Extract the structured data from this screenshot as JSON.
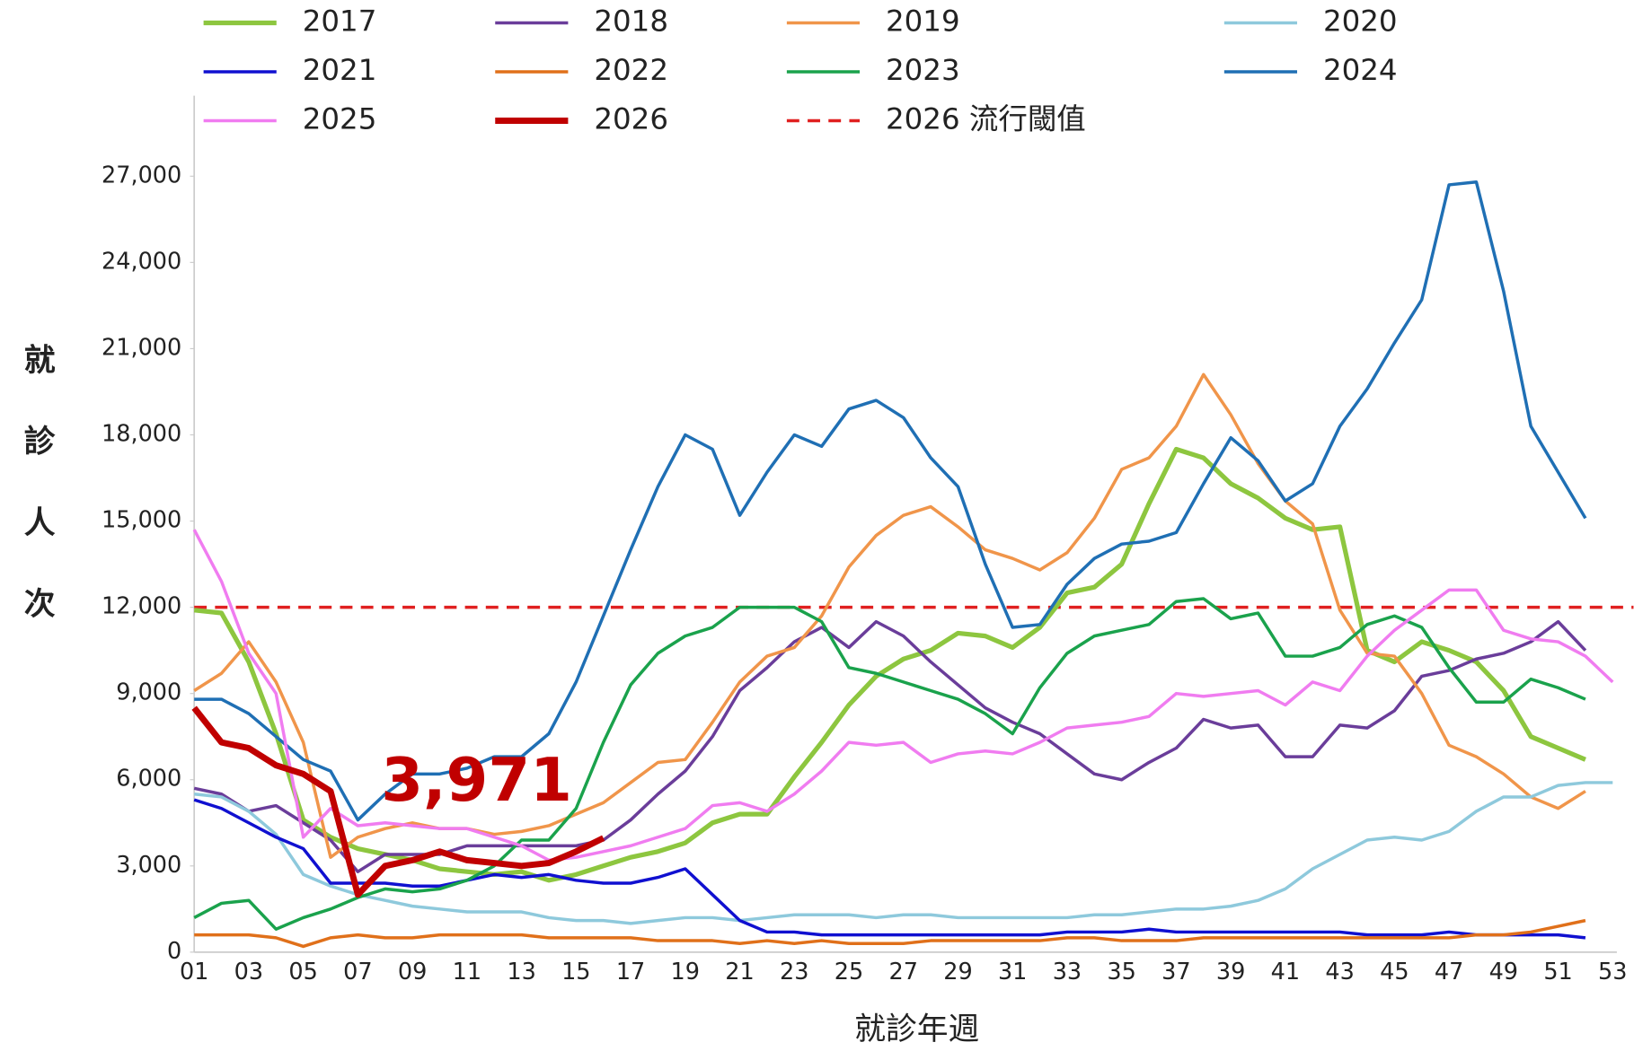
{
  "chart_data": {
    "type": "line",
    "xlabel": "就診年週",
    "ylabel": "就診人次",
    "categories": [
      "01",
      null,
      "03",
      null,
      "05",
      null,
      "07",
      null,
      "09",
      null,
      "11",
      null,
      "13",
      null,
      "15",
      null,
      "17",
      null,
      "19",
      null,
      "21",
      null,
      "23",
      null,
      "25",
      null,
      "27",
      null,
      "29",
      null,
      "31",
      null,
      "33",
      null,
      "35",
      null,
      "37",
      null,
      "39",
      null,
      "41",
      null,
      "43",
      null,
      "45",
      null,
      "47",
      null,
      "49",
      null,
      "51",
      null,
      "53"
    ],
    "ylim": [
      0,
      29800
    ],
    "yticks": [
      0,
      {
        "value": 3000,
        "label": "3,000"
      },
      {
        "value": 6000,
        "label": "6,000"
      },
      {
        "value": 9000,
        "label": "9,000"
      },
      {
        "value": 12000,
        "label": "12,000"
      },
      {
        "value": 15000,
        "label": "15,000"
      },
      {
        "value": 18000,
        "label": "18,000"
      },
      {
        "value": 21000,
        "label": "21,000"
      },
      {
        "value": 24000,
        "label": "24,000"
      },
      {
        "value": 27000,
        "label": "27,000"
      }
    ],
    "grid": false,
    "series": [
      {
        "name": "2017",
        "color": "#8dc63f",
        "values": [
          11900,
          11800,
          10100,
          7600,
          4600,
          4000,
          3600,
          3400,
          3200,
          2900,
          2800,
          2700,
          2800,
          2500,
          2700,
          3000,
          3300,
          3500,
          3800,
          4500,
          4800,
          4800,
          6100,
          7300,
          8600,
          9600,
          10200,
          10500,
          11100,
          11000,
          10600,
          11300,
          12500,
          12700,
          13500,
          15600,
          17500,
          17200,
          16300,
          15800,
          15100,
          14700,
          14800,
          10500,
          10100,
          10800,
          10500,
          10100,
          9100,
          7500,
          7100,
          6700,
          null
        ]
      },
      {
        "name": "2018",
        "color": "#6a3d9a",
        "values": [
          5700,
          5500,
          4900,
          5100,
          4500,
          3900,
          2800,
          3400,
          3400,
          3400,
          3700,
          3700,
          3700,
          3700,
          3700,
          3900,
          4600,
          5500,
          6300,
          7500,
          9100,
          9900,
          10800,
          11300,
          10600,
          11500,
          11000,
          10100,
          9300,
          8500,
          8000,
          7600,
          6900,
          6200,
          6000,
          6600,
          7100,
          8100,
          7800,
          7900,
          6800,
          6800,
          7900,
          7800,
          8400,
          9600,
          9800,
          10200,
          10400,
          10800,
          11500,
          10500,
          null
        ]
      },
      {
        "name": "2019",
        "color": "#f0954a",
        "values": [
          9100,
          9700,
          10800,
          9400,
          7300,
          3300,
          4000,
          4300,
          4500,
          4300,
          4300,
          4100,
          4200,
          4400,
          4800,
          5200,
          5900,
          6600,
          6700,
          8000,
          9400,
          10300,
          10600,
          11700,
          13400,
          14500,
          15200,
          15500,
          14800,
          14000,
          13700,
          13300,
          13900,
          15100,
          16800,
          17200,
          18300,
          20100,
          18700,
          17000,
          15700,
          14900,
          11900,
          10400,
          10300,
          9000,
          7200,
          6800,
          6200,
          5400,
          5000,
          5600,
          null
        ]
      },
      {
        "name": "2020",
        "color": "#8ec9dc",
        "values": [
          5500,
          5400,
          4900,
          4100,
          2700,
          2300,
          2000,
          1800,
          1600,
          1500,
          1400,
          1400,
          1400,
          1200,
          1100,
          1100,
          1000,
          1100,
          1200,
          1200,
          1100,
          1200,
          1300,
          1300,
          1300,
          1200,
          1300,
          1300,
          1200,
          1200,
          1200,
          1200,
          1200,
          1300,
          1300,
          1400,
          1500,
          1500,
          1600,
          1800,
          2200,
          2900,
          3400,
          3900,
          4000,
          3900,
          4200,
          4900,
          5400,
          5400,
          5800,
          5900,
          5900
        ]
      },
      {
        "name": "2021",
        "color": "#1010d0",
        "values": [
          5300,
          5000,
          4500,
          4000,
          3600,
          2400,
          2400,
          2400,
          2300,
          2300,
          2500,
          2700,
          2600,
          2700,
          2500,
          2400,
          2400,
          2600,
          2900,
          2000,
          1100,
          700,
          700,
          600,
          600,
          600,
          600,
          600,
          600,
          600,
          600,
          600,
          700,
          700,
          700,
          800,
          700,
          700,
          700,
          700,
          700,
          700,
          700,
          600,
          600,
          600,
          700,
          600,
          600,
          600,
          600,
          500,
          null
        ]
      },
      {
        "name": "2022",
        "color": "#e0701a",
        "values": [
          600,
          600,
          600,
          500,
          200,
          500,
          600,
          500,
          500,
          600,
          600,
          600,
          600,
          500,
          500,
          500,
          500,
          400,
          400,
          400,
          300,
          400,
          300,
          400,
          300,
          300,
          300,
          400,
          400,
          400,
          400,
          400,
          500,
          500,
          400,
          400,
          400,
          500,
          500,
          500,
          500,
          500,
          500,
          500,
          500,
          500,
          500,
          600,
          600,
          700,
          900,
          1100,
          null
        ]
      },
      {
        "name": "2023",
        "color": "#1aa24c",
        "values": [
          1200,
          1700,
          1800,
          800,
          1200,
          1500,
          1900,
          2200,
          2100,
          2200,
          2500,
          3000,
          3900,
          3900,
          5000,
          7300,
          9300,
          10400,
          11000,
          11300,
          12000,
          12000,
          12000,
          11500,
          9900,
          9700,
          9400,
          9100,
          8800,
          8300,
          7600,
          9200,
          10400,
          11000,
          11200,
          11400,
          12200,
          12300,
          11600,
          11800,
          10300,
          10300,
          10600,
          11400,
          11700,
          11300,
          9900,
          8700,
          8700,
          9500,
          9200,
          8800,
          null
        ]
      },
      {
        "name": "2024",
        "color": "#1f6fb4",
        "values": [
          8800,
          8800,
          8300,
          7500,
          6700,
          6300,
          4600,
          5500,
          6200,
          6200,
          6400,
          6800,
          6800,
          7600,
          9400,
          11700,
          14000,
          16200,
          18000,
          17500,
          15200,
          16700,
          18000,
          17600,
          18900,
          19200,
          18600,
          17200,
          16200,
          13500,
          11300,
          11400,
          12800,
          13700,
          14200,
          14300,
          14600,
          16300,
          17900,
          17100,
          15700,
          16300,
          18300,
          19600,
          21200,
          22700,
          26700,
          26800,
          23000,
          18300,
          16700,
          15100,
          null
        ]
      },
      {
        "name": "2025",
        "color": "#f07cf0",
        "values": [
          14700,
          12900,
          10400,
          9000,
          4000,
          5000,
          4400,
          4500,
          4400,
          4300,
          4300,
          4000,
          3700,
          3200,
          3300,
          3500,
          3700,
          4000,
          4300,
          5100,
          5200,
          4900,
          5500,
          6300,
          7300,
          7200,
          7300,
          6600,
          6900,
          7000,
          6900,
          7300,
          7800,
          7900,
          8000,
          8200,
          9000,
          8900,
          9000,
          9100,
          8600,
          9400,
          9100,
          10300,
          11200,
          11900,
          12600,
          12600,
          11200,
          10900,
          10800,
          10300,
          9400
        ]
      },
      {
        "name": "2026",
        "color": "#c00000",
        "values": [
          8500,
          7300,
          7100,
          6500,
          6200,
          5600,
          2000,
          3000,
          3200,
          3500,
          3200,
          3100,
          3000,
          3100,
          3500,
          3971,
          null,
          null,
          null,
          null,
          null,
          null,
          null,
          null,
          null,
          null,
          null,
          null,
          null,
          null,
          null,
          null,
          null,
          null,
          null,
          null,
          null,
          null,
          null,
          null,
          null,
          null,
          null,
          null,
          null,
          null,
          null,
          null,
          null,
          null,
          null,
          null,
          null
        ],
        "value_labels": [
          null,
          null,
          null,
          null,
          null,
          null,
          null,
          null,
          null,
          null,
          null,
          null,
          null,
          null,
          null,
          "3,971",
          null,
          null,
          null,
          null,
          null,
          null,
          null,
          null,
          null,
          null,
          null,
          null,
          null,
          null,
          null,
          null,
          null,
          null,
          null,
          null,
          null,
          null,
          null,
          null,
          null,
          null,
          null,
          null,
          null,
          null,
          null,
          null,
          null,
          null,
          null,
          null,
          null
        ]
      }
    ],
    "threshold": {
      "name": "2026 流行閾值",
      "value": 12000,
      "color": "#e02020"
    }
  }
}
